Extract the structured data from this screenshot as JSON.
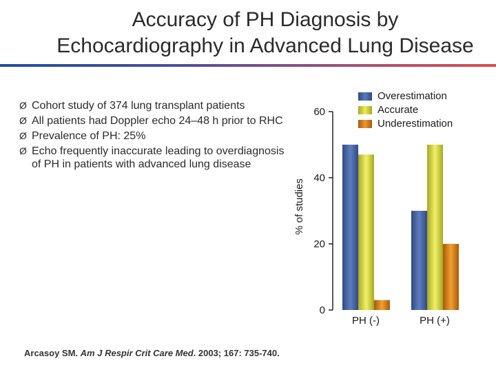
{
  "title": {
    "line1": "Accuracy of PH Diagnosis by",
    "line2": "Echocardiography in Advanced Lung Disease"
  },
  "bullets": [
    "Cohort study of 374 lung transplant patients",
    "All patients had Doppler echo 24–48 h prior to RHC",
    "Prevalence of PH: 25%",
    "Echo frequently inaccurate leading to overdiagnosis of PH in patients with advanced lung disease"
  ],
  "bullet_marker": "Ø",
  "citation": {
    "author": "Arcasoy SM.",
    "journal": "Am J Respir Crit Care Med",
    "rest": ". 2003; 167: 735-740."
  },
  "colors": {
    "overestimation": "#4a66a6",
    "accurate": "#d8d83a",
    "underestimation": "#d97d10",
    "title_rule_start": "#1e4f9c",
    "title_rule_end": "#e04a4a"
  },
  "chart_data": {
    "type": "bar",
    "categories": [
      "PH (-)",
      "PH (+)"
    ],
    "series": [
      {
        "name": "Overestimation",
        "values": [
          50,
          30
        ]
      },
      {
        "name": "Accurate",
        "values": [
          47,
          50
        ]
      },
      {
        "name": "Underestimation",
        "values": [
          3,
          20
        ]
      }
    ],
    "ylabel": "% of studies",
    "xlabel": "",
    "ylim": [
      0,
      60
    ],
    "yticks": [
      0,
      20,
      40,
      60
    ],
    "legend_position": "top-right",
    "grid": false
  }
}
